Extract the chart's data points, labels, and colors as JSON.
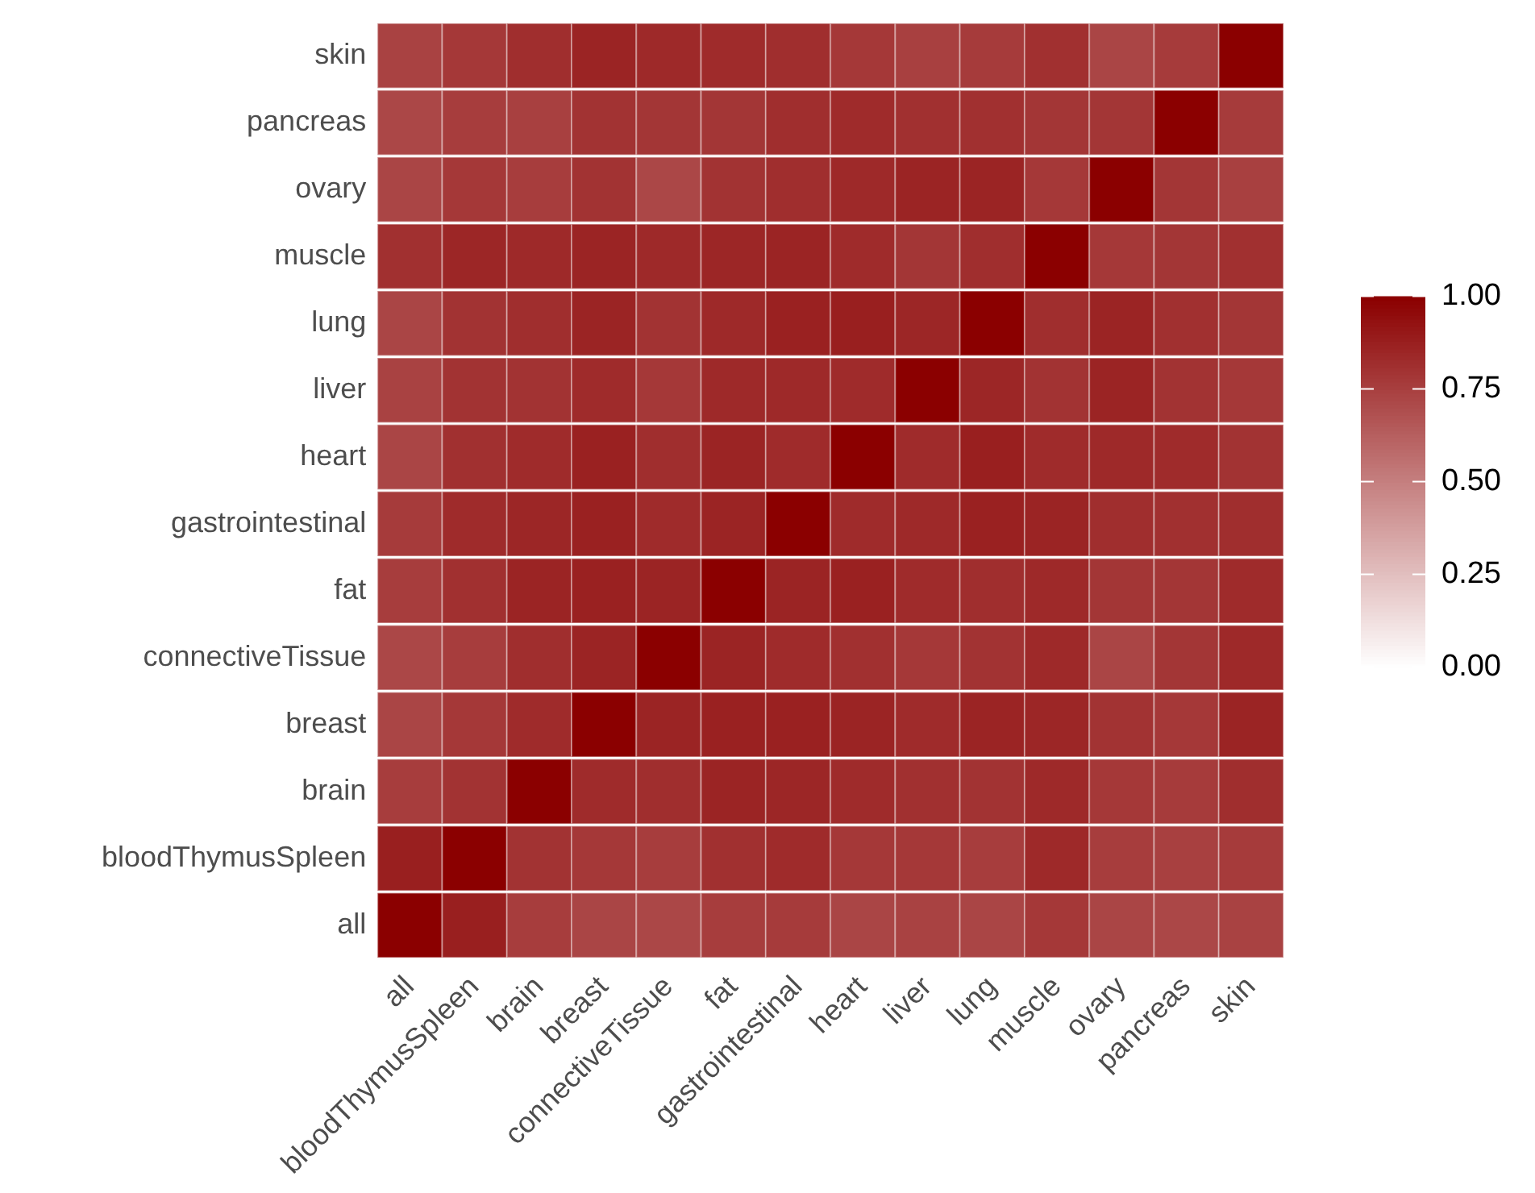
{
  "chart_data": {
    "type": "heatmap",
    "categories": [
      "all",
      "bloodThymusSpleen",
      "brain",
      "breast",
      "connectiveTissue",
      "fat",
      "gastrointestinal",
      "heart",
      "liver",
      "lung",
      "muscle",
      "ovary",
      "pancreas",
      "skin"
    ],
    "y_categories": [
      "skin",
      "pancreas",
      "ovary",
      "muscle",
      "lung",
      "liver",
      "heart",
      "gastrointestinal",
      "fat",
      "connectiveTissue",
      "breast",
      "brain",
      "bloodThymusSpleen",
      "all"
    ],
    "cells": [
      [
        0.74,
        0.78,
        0.82,
        0.86,
        0.84,
        0.83,
        0.82,
        0.78,
        0.75,
        0.77,
        0.81,
        0.73,
        0.77,
        1
      ],
      [
        0.72,
        0.76,
        0.75,
        0.8,
        0.79,
        0.79,
        0.82,
        0.83,
        0.81,
        0.81,
        0.79,
        0.79,
        1,
        0.77
      ],
      [
        0.73,
        0.78,
        0.76,
        0.8,
        0.72,
        0.8,
        0.82,
        0.84,
        0.86,
        0.86,
        0.78,
        1,
        0.79,
        0.75
      ],
      [
        0.81,
        0.85,
        0.84,
        0.86,
        0.84,
        0.85,
        0.86,
        0.83,
        0.79,
        0.82,
        1,
        0.78,
        0.79,
        0.81
      ],
      [
        0.73,
        0.8,
        0.82,
        0.86,
        0.8,
        0.84,
        0.87,
        0.88,
        0.85,
        1,
        0.82,
        0.86,
        0.81,
        0.79
      ],
      [
        0.74,
        0.8,
        0.8,
        0.83,
        0.78,
        0.84,
        0.84,
        0.83,
        1,
        0.85,
        0.8,
        0.86,
        0.8,
        0.78
      ],
      [
        0.73,
        0.81,
        0.83,
        0.87,
        0.82,
        0.86,
        0.83,
        1,
        0.83,
        0.88,
        0.83,
        0.84,
        0.83,
        0.8
      ],
      [
        0.77,
        0.83,
        0.85,
        0.87,
        0.83,
        0.86,
        1,
        0.83,
        0.84,
        0.87,
        0.86,
        0.82,
        0.81,
        0.82
      ],
      [
        0.76,
        0.81,
        0.86,
        0.87,
        0.86,
        1,
        0.86,
        0.87,
        0.83,
        0.82,
        0.84,
        0.79,
        0.79,
        0.83
      ],
      [
        0.72,
        0.76,
        0.82,
        0.86,
        1,
        0.86,
        0.83,
        0.81,
        0.78,
        0.8,
        0.84,
        0.73,
        0.79,
        0.84
      ],
      [
        0.73,
        0.78,
        0.83,
        1,
        0.86,
        0.87,
        0.87,
        0.86,
        0.83,
        0.86,
        0.85,
        0.8,
        0.78,
        0.86
      ],
      [
        0.76,
        0.8,
        1,
        0.83,
        0.82,
        0.86,
        0.85,
        0.83,
        0.81,
        0.8,
        0.84,
        0.78,
        0.77,
        0.82
      ],
      [
        0.88,
        1,
        0.8,
        0.78,
        0.76,
        0.81,
        0.83,
        0.78,
        0.78,
        0.76,
        0.84,
        0.76,
        0.75,
        0.77
      ],
      [
        1,
        0.88,
        0.76,
        0.73,
        0.72,
        0.76,
        0.77,
        0.73,
        0.74,
        0.73,
        0.78,
        0.73,
        0.72,
        0.74
      ]
    ],
    "colors": [
      "#ffffff",
      "#8b0000"
    ],
    "clim": [
      0,
      1
    ],
    "cticks": [
      {
        "value": 0,
        "label": "0.00"
      },
      {
        "value": 0.25,
        "label": "0.25"
      },
      {
        "value": 0.5,
        "label": "0.50"
      },
      {
        "value": 0.75,
        "label": "0.75"
      },
      {
        "value": 1,
        "label": "1.00"
      }
    ]
  }
}
